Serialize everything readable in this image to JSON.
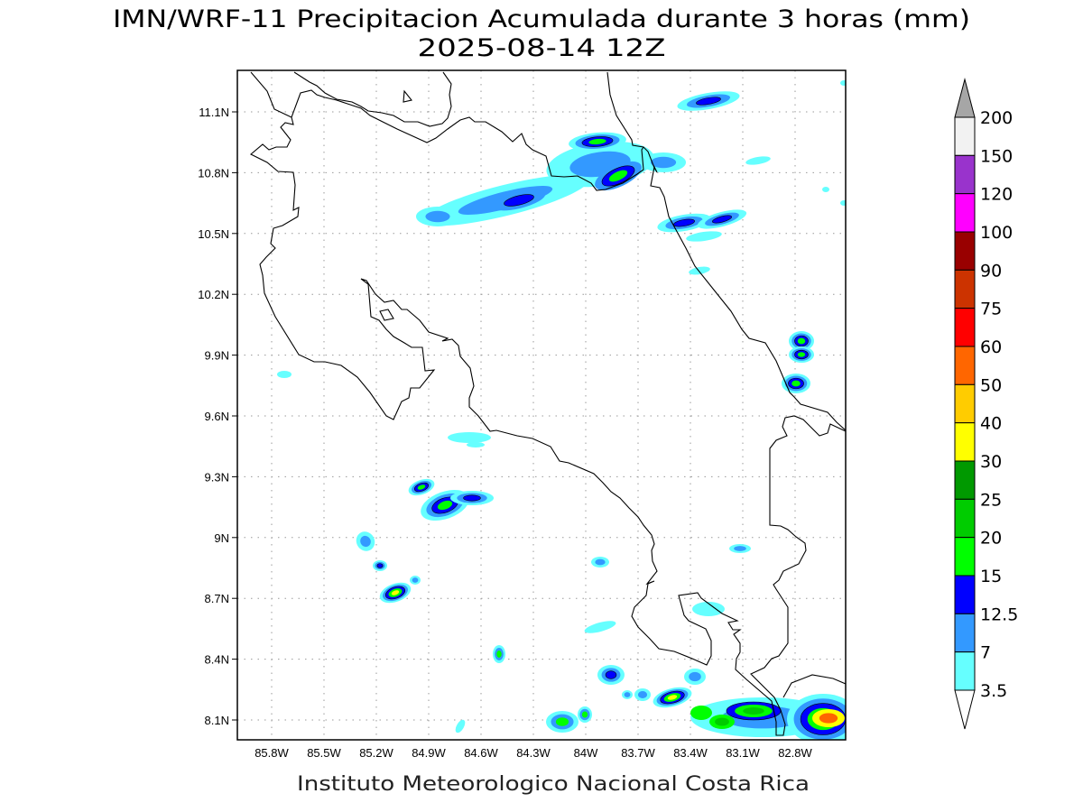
{
  "title": {
    "line1": "IMN/WRF-11 Precipitacion Acumulada durante 3 horas (mm)",
    "line2": "2025-08-14 12Z"
  },
  "credit": "Instituto Meteorologico Nacional Costa Rica",
  "map": {
    "lat_labels": [
      "11.1N",
      "10.8N",
      "10.5N",
      "10.2N",
      "9.9N",
      "9.6N",
      "9.3N",
      "9N",
      "8.7N",
      "8.4N",
      "8.1N"
    ],
    "lon_labels": [
      "85.8W",
      "85.5W",
      "85.2W",
      "84.9W",
      "84.6W",
      "84.3W",
      "84W",
      "83.7W",
      "83.4W",
      "83.1W",
      "82.8W"
    ]
  },
  "colorbar": {
    "over_color": "#a6a6a6",
    "under_color": "#ffffff",
    "labels": [
      "200",
      "150",
      "120",
      "100",
      "90",
      "75",
      "60",
      "50",
      "40",
      "30",
      "25",
      "20",
      "15",
      "12.5",
      "7",
      "3.5"
    ],
    "colors_top_to_bottom": [
      "#f2f2f2",
      "#9933cc",
      "#ff00ff",
      "#990000",
      "#cc3300",
      "#ff0000",
      "#ff6600",
      "#ffcc00",
      "#ffff00",
      "#009900",
      "#00cc00",
      "#00ff00",
      "#0000ff",
      "#3399ff",
      "#66ffff"
    ]
  }
}
